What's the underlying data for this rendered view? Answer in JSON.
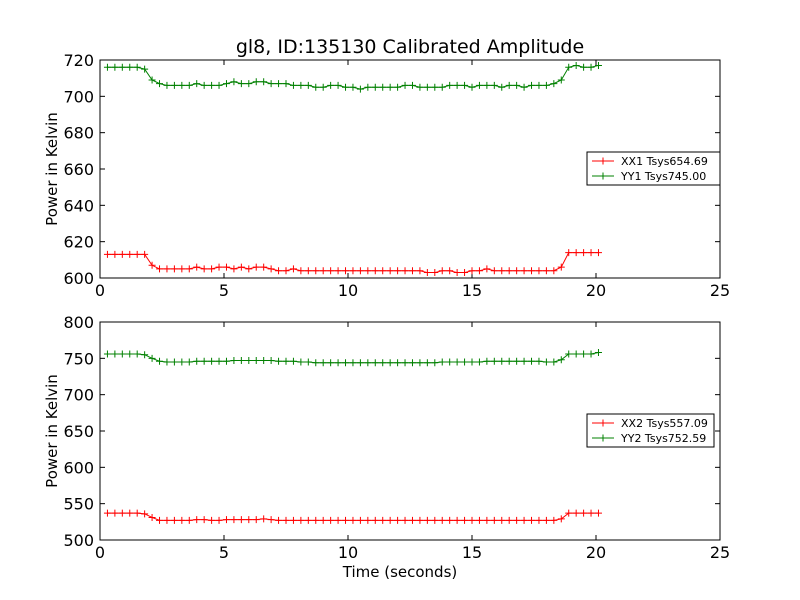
{
  "chart_data": [
    {
      "type": "line",
      "title": "gl8, ID:135130 Calibrated Amplitude",
      "xlabel": "",
      "ylabel": "Power in Kelvin",
      "xlim": [
        0,
        25
      ],
      "ylim": [
        600,
        720
      ],
      "xticks": [
        0,
        5,
        10,
        15,
        20,
        25
      ],
      "yticks": [
        600,
        620,
        640,
        660,
        680,
        700,
        720
      ],
      "grid": false,
      "legend_position": "right",
      "series": [
        {
          "name": "XX1 Tsys654.69",
          "color": "#ff0000",
          "x": [
            0.3,
            0.6,
            0.9,
            1.2,
            1.5,
            1.8,
            2.1,
            2.4,
            2.7,
            3.0,
            3.3,
            3.6,
            3.9,
            4.2,
            4.5,
            4.8,
            5.1,
            5.4,
            5.7,
            6.0,
            6.3,
            6.6,
            6.9,
            7.2,
            7.5,
            7.8,
            8.1,
            8.4,
            8.7,
            9.0,
            9.3,
            9.6,
            9.9,
            10.2,
            10.5,
            10.8,
            11.1,
            11.4,
            11.7,
            12.0,
            12.3,
            12.6,
            12.9,
            13.2,
            13.5,
            13.8,
            14.1,
            14.4,
            14.7,
            15.0,
            15.3,
            15.6,
            15.9,
            16.2,
            16.5,
            16.8,
            17.1,
            17.4,
            17.7,
            18.0,
            18.3,
            18.6,
            18.9,
            19.2,
            19.5,
            19.8,
            20.1
          ],
          "y": [
            613,
            613,
            613,
            613,
            613,
            613,
            607,
            605,
            605,
            605,
            605,
            605,
            606,
            605,
            605,
            606,
            606,
            605,
            606,
            605,
            606,
            606,
            605,
            604,
            604,
            605,
            604,
            604,
            604,
            604,
            604,
            604,
            604,
            604,
            604,
            604,
            604,
            604,
            604,
            604,
            604,
            604,
            604,
            603,
            603,
            604,
            604,
            603,
            603,
            604,
            604,
            605,
            604,
            604,
            604,
            604,
            604,
            604,
            604,
            604,
            604,
            606,
            614,
            614,
            614,
            614,
            614
          ]
        },
        {
          "name": "YY1 Tsys745.00",
          "color": "#008000",
          "x": [
            0.3,
            0.6,
            0.9,
            1.2,
            1.5,
            1.8,
            2.1,
            2.4,
            2.7,
            3.0,
            3.3,
            3.6,
            3.9,
            4.2,
            4.5,
            4.8,
            5.1,
            5.4,
            5.7,
            6.0,
            6.3,
            6.6,
            6.9,
            7.2,
            7.5,
            7.8,
            8.1,
            8.4,
            8.7,
            9.0,
            9.3,
            9.6,
            9.9,
            10.2,
            10.5,
            10.8,
            11.1,
            11.4,
            11.7,
            12.0,
            12.3,
            12.6,
            12.9,
            13.2,
            13.5,
            13.8,
            14.1,
            14.4,
            14.7,
            15.0,
            15.3,
            15.6,
            15.9,
            16.2,
            16.5,
            16.8,
            17.1,
            17.4,
            17.7,
            18.0,
            18.3,
            18.6,
            18.9,
            19.2,
            19.5,
            19.8,
            20.1
          ],
          "y": [
            716,
            716,
            716,
            716,
            716,
            715,
            709,
            707,
            706,
            706,
            706,
            706,
            707,
            706,
            706,
            706,
            707,
            708,
            707,
            707,
            708,
            708,
            707,
            707,
            707,
            706,
            706,
            706,
            705,
            705,
            706,
            706,
            705,
            705,
            704,
            705,
            705,
            705,
            705,
            705,
            706,
            706,
            705,
            705,
            705,
            705,
            706,
            706,
            706,
            705,
            706,
            706,
            706,
            705,
            706,
            706,
            705,
            706,
            706,
            706,
            707,
            709,
            716,
            717,
            716,
            716,
            717
          ]
        }
      ]
    },
    {
      "type": "line",
      "title": "",
      "xlabel": "Time (seconds)",
      "ylabel": "Power in Kelvin",
      "xlim": [
        0,
        25
      ],
      "ylim": [
        500,
        800
      ],
      "xticks": [
        0,
        5,
        10,
        15,
        20,
        25
      ],
      "yticks": [
        500,
        550,
        600,
        650,
        700,
        750,
        800
      ],
      "grid": false,
      "legend_position": "right",
      "series": [
        {
          "name": "XX2 Tsys557.09",
          "color": "#ff0000",
          "x": [
            0.3,
            0.6,
            0.9,
            1.2,
            1.5,
            1.8,
            2.1,
            2.4,
            2.7,
            3.0,
            3.3,
            3.6,
            3.9,
            4.2,
            4.5,
            4.8,
            5.1,
            5.4,
            5.7,
            6.0,
            6.3,
            6.6,
            6.9,
            7.2,
            7.5,
            7.8,
            8.1,
            8.4,
            8.7,
            9.0,
            9.3,
            9.6,
            9.9,
            10.2,
            10.5,
            10.8,
            11.1,
            11.4,
            11.7,
            12.0,
            12.3,
            12.6,
            12.9,
            13.2,
            13.5,
            13.8,
            14.1,
            14.4,
            14.7,
            15.0,
            15.3,
            15.6,
            15.9,
            16.2,
            16.5,
            16.8,
            17.1,
            17.4,
            17.7,
            18.0,
            18.3,
            18.6,
            18.9,
            19.2,
            19.5,
            19.8,
            20.1
          ],
          "y": [
            537,
            537,
            537,
            537,
            537,
            536,
            531,
            527,
            527,
            527,
            527,
            527,
            528,
            528,
            527,
            527,
            528,
            528,
            528,
            528,
            528,
            529,
            528,
            527,
            527,
            527,
            527,
            527,
            527,
            527,
            527,
            527,
            527,
            527,
            527,
            527,
            527,
            527,
            527,
            527,
            527,
            527,
            527,
            527,
            527,
            527,
            527,
            527,
            527,
            527,
            527,
            527,
            527,
            527,
            527,
            527,
            527,
            527,
            527,
            527,
            527,
            529,
            537,
            537,
            537,
            537,
            537
          ]
        },
        {
          "name": "YY2 Tsys752.59",
          "color": "#008000",
          "x": [
            0.3,
            0.6,
            0.9,
            1.2,
            1.5,
            1.8,
            2.1,
            2.4,
            2.7,
            3.0,
            3.3,
            3.6,
            3.9,
            4.2,
            4.5,
            4.8,
            5.1,
            5.4,
            5.7,
            6.0,
            6.3,
            6.6,
            6.9,
            7.2,
            7.5,
            7.8,
            8.1,
            8.4,
            8.7,
            9.0,
            9.3,
            9.6,
            9.9,
            10.2,
            10.5,
            10.8,
            11.1,
            11.4,
            11.7,
            12.0,
            12.3,
            12.6,
            12.9,
            13.2,
            13.5,
            13.8,
            14.1,
            14.4,
            14.7,
            15.0,
            15.3,
            15.6,
            15.9,
            16.2,
            16.5,
            16.8,
            17.1,
            17.4,
            17.7,
            18.0,
            18.3,
            18.6,
            18.9,
            19.2,
            19.5,
            19.8,
            20.1
          ],
          "y": [
            756,
            756,
            756,
            756,
            756,
            755,
            750,
            746,
            745,
            745,
            745,
            745,
            746,
            746,
            746,
            746,
            746,
            747,
            747,
            747,
            747,
            747,
            747,
            746,
            746,
            746,
            745,
            745,
            744,
            744,
            744,
            744,
            744,
            744,
            744,
            744,
            744,
            744,
            744,
            744,
            744,
            744,
            744,
            744,
            744,
            745,
            745,
            745,
            745,
            745,
            745,
            746,
            746,
            746,
            746,
            746,
            746,
            746,
            746,
            745,
            745,
            748,
            756,
            756,
            756,
            756,
            758
          ]
        }
      ]
    }
  ]
}
